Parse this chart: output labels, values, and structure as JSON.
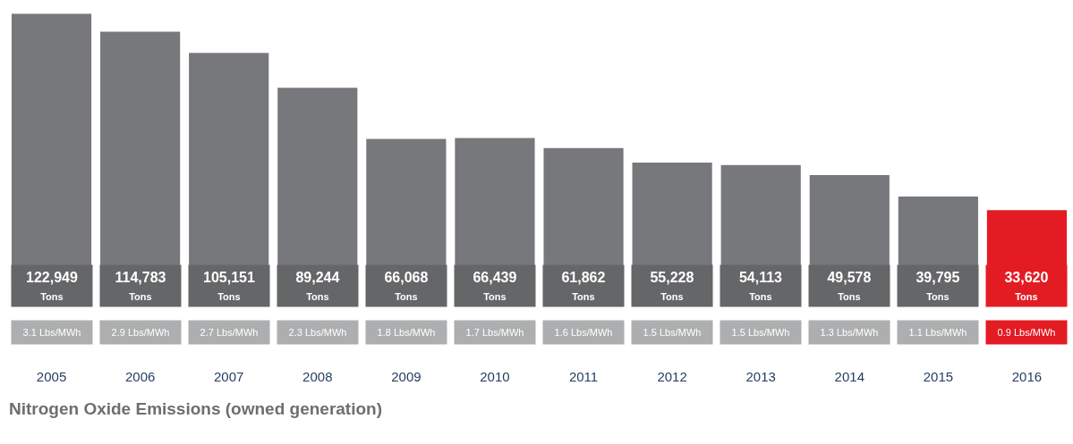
{
  "chart_data": {
    "type": "bar",
    "title": "Nitrogen Oxide Emissions (owned generation)",
    "categories": [
      "2005",
      "2006",
      "2007",
      "2008",
      "2009",
      "2010",
      "2011",
      "2012",
      "2013",
      "2014",
      "2015",
      "2016"
    ],
    "values": [
      122949,
      114783,
      105151,
      89244,
      66068,
      66439,
      61862,
      55228,
      54113,
      49578,
      39795,
      33620
    ],
    "colors": [
      "#77787b",
      "#77787b",
      "#77787b",
      "#77787b",
      "#77787b",
      "#77787b",
      "#77787b",
      "#77787b",
      "#77787b",
      "#77787b",
      "#77787b",
      "#e31b23"
    ],
    "value_labels": [
      "122,949\nTons",
      "114,783\nTons",
      "105,151\nTons",
      "89,244\nTons",
      "66,068\nTons",
      "66,439\nTons",
      "61,862\nTons",
      "55,228\nTons",
      "54,113\nTons",
      "49,578\nTons",
      "39,795\nTons",
      "33,620\nTons"
    ],
    "annotations": [
      "3.1 Lbs/MWh",
      "2.9 Lbs/MWh",
      "2.7 Lbs/MWh",
      "2.3 Lbs/MWh",
      "1.8 Lbs/MWh",
      "1.7 Lbs/MWh",
      "1.6 Lbs/MWh",
      "1.5 Lbs/MWh",
      "1.5 Lbs/MWh",
      "1.3 Lbs/MWh",
      "1.1 Lbs/MWh",
      "0.9 Lbs/MWh"
    ],
    "legend": false
  }
}
